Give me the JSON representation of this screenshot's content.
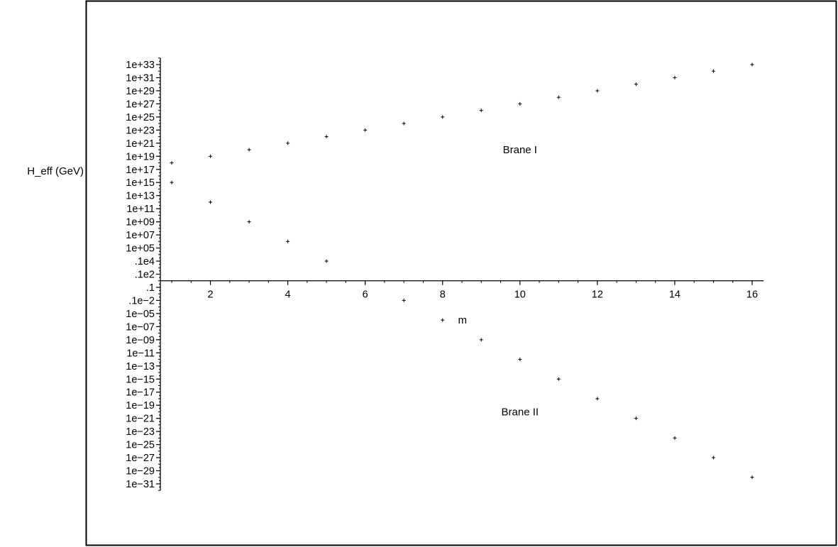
{
  "chart_data": {
    "type": "scatter",
    "title": "",
    "xlabel": "m",
    "ylabel": "H_eff (GeV)",
    "y_scale": "log",
    "xlim": [
      1,
      16.3
    ],
    "ylim": [
      1e-32,
      1e+34
    ],
    "grid": false,
    "legend": "none",
    "x_ticks": [
      2,
      4,
      6,
      8,
      10,
      12,
      14,
      16
    ],
    "x_tick_labels": [
      "2",
      "4",
      "6",
      "8",
      "10",
      "12",
      "14",
      "16"
    ],
    "y_ticks": [
      1e+33,
      1e+31,
      1e+29,
      1e+27,
      1e+25,
      1e+23,
      1e+21,
      1e+19,
      1e+17,
      1000000000000000.0,
      10000000000000.0,
      100000000000.0,
      1000000000.0,
      10000000.0,
      100000.0,
      1000,
      10,
      0.1,
      0.001,
      1e-05,
      1e-07,
      1e-09,
      1e-11,
      1e-13,
      1e-15,
      1e-17,
      1e-19,
      1e-21,
      1e-23,
      1e-25,
      1e-27,
      1e-29,
      1e-31
    ],
    "y_tick_labels": [
      "1e+33",
      "1e+31",
      "1e+29",
      "1e+27",
      "1e+25",
      "1e+23",
      "1e+21",
      "1e+19",
      "1e+17",
      "1e+15",
      "1e+13",
      "1e+11",
      "1e+09",
      "1e+07",
      "1e+05",
      ".1e4",
      ".1e2",
      ".1",
      ".1e−2",
      "1e−05",
      "1e−07",
      "1e−09",
      "1e−11",
      "1e−13",
      "1e−15",
      "1e−17",
      "1e−19",
      "1e−21",
      "1e−23",
      "1e−25",
      "1e−27",
      "1e−29",
      "1e−31"
    ],
    "series": [
      {
        "x": [
          1,
          2,
          3,
          4,
          5,
          6,
          7,
          8,
          9,
          10,
          11,
          12,
          13,
          14,
          15,
          16
        ],
        "y": [
          1e+18,
          1e+19,
          1e+20,
          1e+21,
          1e+22,
          1e+23,
          1e+24,
          1e+25,
          1e+26,
          1e+27,
          1e+28,
          1e+29,
          1e+30,
          1e+31,
          1e+32,
          1e+33
        ]
      },
      {
        "x": [
          1,
          2,
          3,
          4,
          5,
          7,
          8,
          9,
          10,
          11,
          12,
          13,
          14,
          15,
          16
        ],
        "y": [
          1000000000000000.0,
          1000000000000.0,
          1000000000.0,
          1000000.0,
          1000,
          0.001,
          1e-06,
          1e-09,
          1e-12,
          1e-15,
          1e-18,
          1e-21,
          1e-24,
          1e-27,
          1e-30
        ]
      }
    ],
    "annotations": [
      {
        "text": "Brane I",
        "x": 10,
        "y": 1e+20
      },
      {
        "text": "Brane II",
        "x": 10,
        "y": 1e-20
      }
    ]
  }
}
